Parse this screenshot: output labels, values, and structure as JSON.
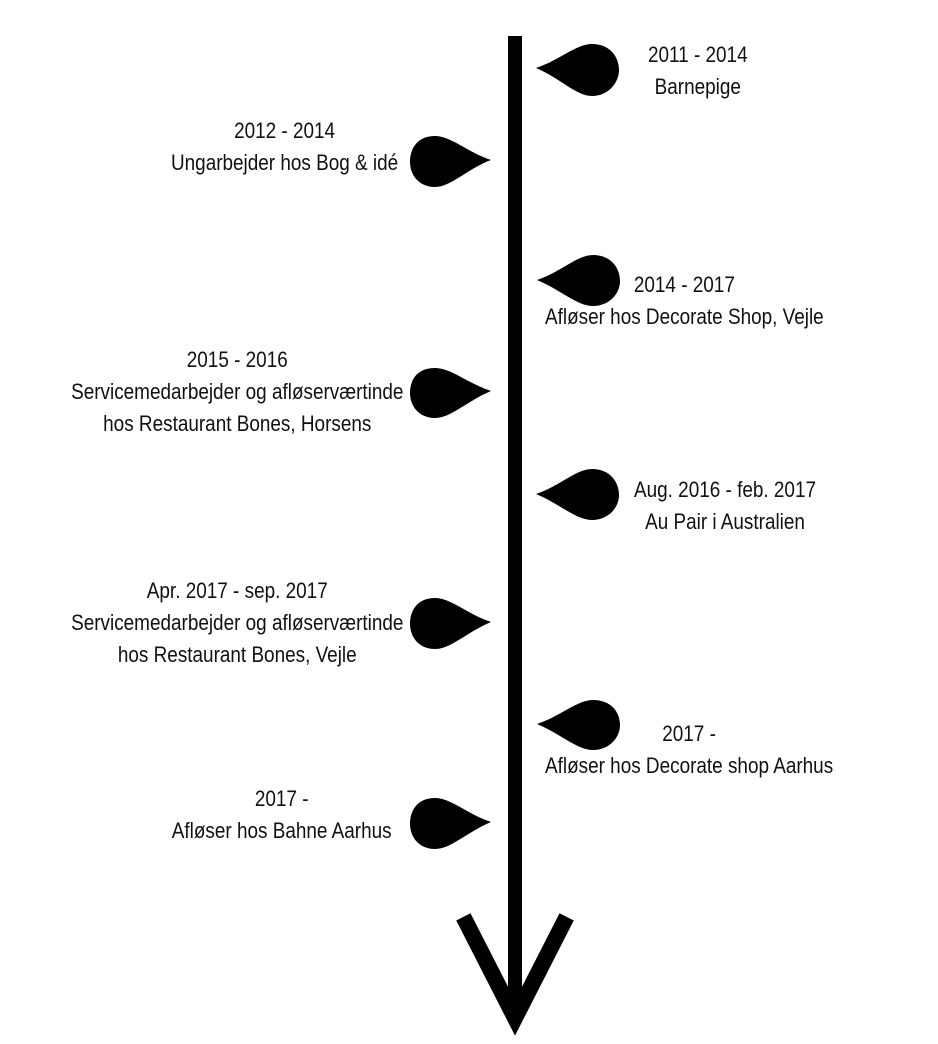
{
  "colors": {
    "line": "#000000",
    "text": "#111111",
    "background": "#ffffff"
  },
  "entries": [
    {
      "period": "2011 - 2014",
      "desc": [
        "Barnepige"
      ],
      "side": "right"
    },
    {
      "period": "2012 - 2014",
      "desc": [
        "Ungarbejder hos Bog & idé"
      ],
      "side": "left"
    },
    {
      "period": "2014 - 2017",
      "desc": [
        "Afløser hos Decorate Shop, Vejle"
      ],
      "side": "right"
    },
    {
      "period": "2015 - 2016",
      "desc": [
        "Servicemedarbejder og afløserværtinde",
        "hos Restaurant Bones, Horsens"
      ],
      "side": "left"
    },
    {
      "period": "Aug. 2016 - feb. 2017",
      "desc": [
        "Au Pair i Australien"
      ],
      "side": "right"
    },
    {
      "period": "Apr. 2017 - sep. 2017",
      "desc": [
        "Servicemedarbejder og afløserværtinde",
        "hos Restaurant Bones, Vejle"
      ],
      "side": "left"
    },
    {
      "period": "2017 -",
      "desc": [
        "Afløser hos Decorate shop Aarhus"
      ],
      "side": "right"
    },
    {
      "period": "2017 -",
      "desc": [
        "Afløser hos Bahne Aarhus"
      ],
      "side": "left"
    }
  ]
}
